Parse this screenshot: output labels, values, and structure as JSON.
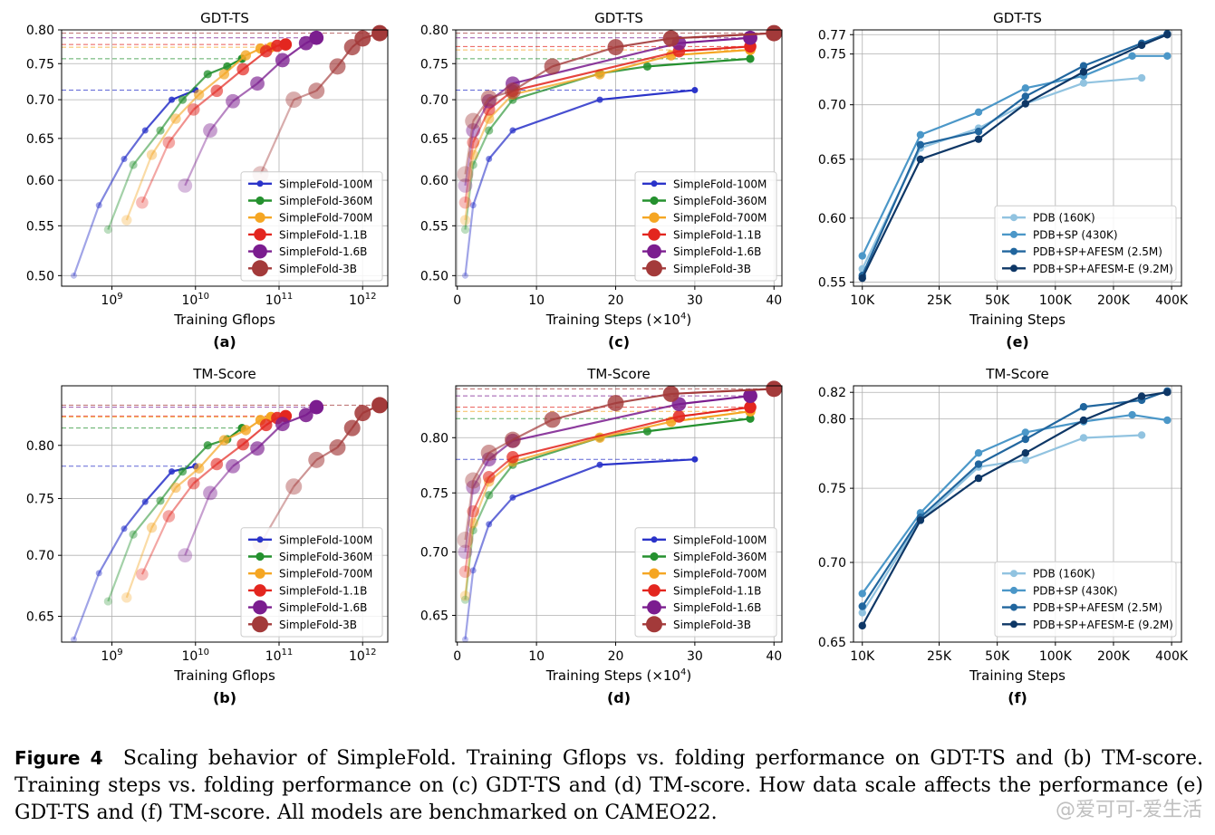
{
  "caption": {
    "label": "Figure 4",
    "text": "Scaling behavior of SimpleFold. Training Gflops vs. folding performance on GDT-TS and (b) TM-score. Training steps vs. folding performance on (c) GDT-TS and (d) TM-score. How data scale affects the performance (e) GDT-TS and (f) TM-score. All models are benchmarked on CAMEO22."
  },
  "watermark": "@爱可可-爱生活",
  "colors": {
    "SimpleFold-100M": "#2a33c9",
    "SimpleFold-360M": "#25912f",
    "SimpleFold-700M": "#f5a623",
    "SimpleFold-1.1B": "#e3261f",
    "SimpleFold-1.6B": "#7b1d8f",
    "SimpleFold-3B": "#a33a3a",
    "PDB (160K)": "#91c3e0",
    "PDB+SP (430K)": "#4b97c8",
    "PDB+SP+AFESM (2.5M)": "#21669e",
    "PDB+SP+AFESM-E (9.2M)": "#0e3766"
  },
  "chart_data": [
    {
      "id": "a",
      "panel_label": "(a)",
      "type": "line",
      "title": "GDT-TS",
      "xlabel": "Training Gflops",
      "ylabel": "",
      "xscale": "log",
      "xlim": [
        250000000,
        2000000000000
      ],
      "ylim": [
        0.49,
        0.8
      ],
      "yscale": "log",
      "xticks": [
        1000000000,
        10000000000,
        100000000000,
        1000000000000
      ],
      "xticklabels": [
        "10^9",
        "10^10",
        "10^11",
        "10^12"
      ],
      "yticks": [
        0.5,
        0.55,
        0.6,
        0.65,
        0.7,
        0.75,
        0.8
      ],
      "yticklabels": [
        "0.50",
        "0.55",
        "0.60",
        "0.65",
        "0.70",
        "0.75",
        "0.80"
      ],
      "grid": true,
      "legend": "bottom-right",
      "fade": true,
      "series": [
        {
          "name": "SimpleFold-100M",
          "x": [
            350000000,
            700000000,
            1400000000,
            2500000000,
            5200000000,
            10000000000
          ],
          "y": [
            0.5,
            0.572,
            0.625,
            0.66,
            0.7,
            0.713
          ]
        },
        {
          "name": "SimpleFold-360M",
          "x": [
            900000000,
            1800000000,
            3800000000,
            7000000000,
            14000000000,
            24000000000,
            36000000000
          ],
          "y": [
            0.546,
            0.618,
            0.66,
            0.7,
            0.735,
            0.746,
            0.757
          ]
        },
        {
          "name": "SimpleFold-700M",
          "x": [
            1500000000,
            3000000000,
            5800000000,
            11000000000,
            22000000000,
            40000000000,
            60000000000,
            80000000000
          ],
          "y": [
            0.556,
            0.63,
            0.675,
            0.707,
            0.735,
            0.762,
            0.772,
            0.774
          ]
        },
        {
          "name": "SimpleFold-1.1B",
          "x": [
            2300000000,
            4800000000,
            9500000000,
            18000000000,
            37000000000,
            70000000000,
            95000000000,
            120000000000
          ],
          "y": [
            0.575,
            0.645,
            0.687,
            0.712,
            0.742,
            0.768,
            0.776,
            0.778
          ]
        },
        {
          "name": "SimpleFold-1.6B",
          "x": [
            7500000000,
            15000000000,
            28000000000,
            55000000000,
            110000000000,
            210000000000,
            280000000000
          ],
          "y": [
            0.594,
            0.66,
            0.698,
            0.722,
            0.755,
            0.78,
            0.788
          ]
        },
        {
          "name": "SimpleFold-3B",
          "x": [
            60000000000,
            150000000000,
            280000000000,
            500000000000,
            750000000000,
            1000000000000,
            1600000000000
          ],
          "y": [
            0.607,
            0.7,
            0.712,
            0.746,
            0.774,
            0.787,
            0.795
          ]
        }
      ]
    },
    {
      "id": "b",
      "panel_label": "(b)",
      "type": "line",
      "title": "TM-Score",
      "xlabel": "Training Gflops",
      "ylabel": "",
      "xscale": "log",
      "xlim": [
        250000000,
        2000000000000
      ],
      "ylim": [
        0.63,
        0.86
      ],
      "yscale": "log",
      "xticks": [
        1000000000,
        10000000000,
        100000000000,
        1000000000000
      ],
      "xticklabels": [
        "10^9",
        "10^10",
        "10^11",
        "10^12"
      ],
      "yticks": [
        0.65,
        0.7,
        0.75,
        0.8
      ],
      "yticklabels": [
        "0.65",
        "0.70",
        "0.75",
        "0.80"
      ],
      "grid": true,
      "legend": "bottom-right",
      "fade": true,
      "series": [
        {
          "name": "SimpleFold-100M",
          "x": [
            350000000,
            700000000,
            1400000000,
            2500000000,
            5200000000,
            10000000000
          ],
          "y": [
            0.632,
            0.685,
            0.723,
            0.747,
            0.775,
            0.78
          ]
        },
        {
          "name": "SimpleFold-360M",
          "x": [
            900000000,
            1800000000,
            3800000000,
            7000000000,
            14000000000,
            24000000000,
            36000000000
          ],
          "y": [
            0.662,
            0.718,
            0.748,
            0.775,
            0.8,
            0.806,
            0.817
          ]
        },
        {
          "name": "SimpleFold-700M",
          "x": [
            1500000000,
            3000000000,
            5800000000,
            11000000000,
            22000000000,
            40000000000,
            60000000000,
            80000000000
          ],
          "y": [
            0.665,
            0.724,
            0.76,
            0.778,
            0.805,
            0.815,
            0.825,
            0.828
          ]
        },
        {
          "name": "SimpleFold-1.1B",
          "x": [
            2300000000,
            4800000000,
            9500000000,
            18000000000,
            37000000000,
            70000000000,
            95000000000,
            120000000000
          ],
          "y": [
            0.684,
            0.734,
            0.764,
            0.782,
            0.801,
            0.82,
            0.827,
            0.829
          ]
        },
        {
          "name": "SimpleFold-1.6B",
          "x": [
            7500000000,
            15000000000,
            28000000000,
            55000000000,
            110000000000,
            210000000000,
            280000000000
          ],
          "y": [
            0.7,
            0.755,
            0.78,
            0.797,
            0.821,
            0.83,
            0.838
          ]
        },
        {
          "name": "SimpleFold-3B",
          "x": [
            60000000000,
            150000000000,
            280000000000,
            500000000000,
            750000000000,
            1000000000000,
            1600000000000
          ],
          "y": [
            0.71,
            0.761,
            0.786,
            0.798,
            0.817,
            0.832,
            0.84
          ]
        }
      ]
    },
    {
      "id": "c",
      "panel_label": "(c)",
      "type": "line",
      "title": "GDT-TS",
      "xlabel": "Training Steps (×10^4)",
      "ylabel": "",
      "xscale": "linear",
      "xlim": [
        -0.2,
        41
      ],
      "ylim": [
        0.49,
        0.8
      ],
      "yscale": "log",
      "xticks": [
        0,
        10,
        20,
        30,
        40
      ],
      "xticklabels": [
        "0",
        "10",
        "20",
        "30",
        "40"
      ],
      "yticks": [
        0.5,
        0.55,
        0.6,
        0.65,
        0.7,
        0.75,
        0.8
      ],
      "yticklabels": [
        "0.50",
        "0.55",
        "0.60",
        "0.65",
        "0.70",
        "0.75",
        "0.80"
      ],
      "grid": true,
      "legend": "bottom-right",
      "fade": true,
      "series": [
        {
          "name": "SimpleFold-100M",
          "x": [
            1,
            2,
            4,
            7,
            18,
            30
          ],
          "y": [
            0.5,
            0.572,
            0.625,
            0.66,
            0.7,
            0.713
          ]
        },
        {
          "name": "SimpleFold-360M",
          "x": [
            1,
            2,
            4,
            7,
            18,
            24,
            37
          ],
          "y": [
            0.546,
            0.618,
            0.66,
            0.7,
            0.736,
            0.746,
            0.757
          ]
        },
        {
          "name": "SimpleFold-700M",
          "x": [
            1,
            2,
            4,
            7,
            18,
            27,
            37
          ],
          "y": [
            0.556,
            0.63,
            0.675,
            0.707,
            0.735,
            0.762,
            0.77
          ]
        },
        {
          "name": "SimpleFold-1.1B",
          "x": [
            1,
            2,
            4,
            7,
            28,
            37
          ],
          "y": [
            0.575,
            0.645,
            0.687,
            0.712,
            0.768,
            0.775
          ]
        },
        {
          "name": "SimpleFold-1.6B",
          "x": [
            1,
            2,
            4,
            7,
            28,
            37
          ],
          "y": [
            0.594,
            0.66,
            0.698,
            0.722,
            0.78,
            0.788
          ]
        },
        {
          "name": "SimpleFold-3B",
          "x": [
            1,
            2,
            4,
            7,
            12,
            20,
            27,
            40
          ],
          "y": [
            0.607,
            0.672,
            0.702,
            0.712,
            0.746,
            0.774,
            0.787,
            0.795
          ]
        }
      ]
    },
    {
      "id": "d",
      "panel_label": "(d)",
      "type": "line",
      "title": "TM-Score",
      "xlabel": "Training Steps (×10^4)",
      "ylabel": "",
      "xscale": "linear",
      "xlim": [
        -0.2,
        41
      ],
      "ylim": [
        0.63,
        0.85
      ],
      "yscale": "log",
      "xticks": [
        0,
        10,
        20,
        30,
        40
      ],
      "xticklabels": [
        "0",
        "10",
        "20",
        "30",
        "40"
      ],
      "yticks": [
        0.65,
        0.7,
        0.75,
        0.8
      ],
      "yticklabels": [
        "0.65",
        "0.70",
        "0.75",
        "0.80"
      ],
      "grid": true,
      "legend": "bottom-right",
      "fade": true,
      "series": [
        {
          "name": "SimpleFold-100M",
          "x": [
            1,
            2,
            4,
            7,
            18,
            30
          ],
          "y": [
            0.632,
            0.685,
            0.723,
            0.746,
            0.775,
            0.78
          ]
        },
        {
          "name": "SimpleFold-360M",
          "x": [
            1,
            2,
            4,
            7,
            18,
            24,
            37
          ],
          "y": [
            0.662,
            0.718,
            0.748,
            0.775,
            0.8,
            0.806,
            0.818
          ]
        },
        {
          "name": "SimpleFold-700M",
          "x": [
            1,
            2,
            4,
            7,
            18,
            27,
            37
          ],
          "y": [
            0.665,
            0.724,
            0.76,
            0.778,
            0.8,
            0.815,
            0.825
          ]
        },
        {
          "name": "SimpleFold-1.1B",
          "x": [
            1,
            2,
            4,
            7,
            28,
            37
          ],
          "y": [
            0.684,
            0.734,
            0.764,
            0.782,
            0.82,
            0.829
          ]
        },
        {
          "name": "SimpleFold-1.6B",
          "x": [
            1,
            2,
            4,
            7,
            28,
            37
          ],
          "y": [
            0.7,
            0.755,
            0.78,
            0.797,
            0.832,
            0.84
          ]
        },
        {
          "name": "SimpleFold-3B",
          "x": [
            1,
            2,
            4,
            7,
            12,
            20,
            27,
            40
          ],
          "y": [
            0.71,
            0.761,
            0.786,
            0.798,
            0.817,
            0.833,
            0.842,
            0.847
          ]
        }
      ]
    },
    {
      "id": "e",
      "panel_label": "(e)",
      "type": "line",
      "title": "GDT-TS",
      "xlabel": "Training Steps",
      "ylabel": "",
      "xscale": "log",
      "xlim": [
        9000,
        450000
      ],
      "ylim": [
        0.547,
        0.775
      ],
      "yscale": "log",
      "xticks": [
        10000,
        25000,
        50000,
        100000,
        200000,
        400000
      ],
      "xticklabels": [
        "10K",
        "25K",
        "50K",
        "100K",
        "200K",
        "400K"
      ],
      "yticks": [
        0.55,
        0.6,
        0.65,
        0.7,
        0.75,
        0.77
      ],
      "yticklabels": [
        "0.55",
        "0.60",
        "0.65",
        "0.70",
        "0.75",
        "0.77"
      ],
      "grid": true,
      "legend": "bottom-right",
      "fade": false,
      "series": [
        {
          "name": "PDB (160K)",
          "x": [
            10000,
            20000,
            40000,
            70000,
            140000,
            280000
          ],
          "y": [
            0.56,
            0.66,
            0.678,
            0.701,
            0.721,
            0.726
          ]
        },
        {
          "name": "PDB+SP (430K)",
          "x": [
            10000,
            20000,
            40000,
            70000,
            140000,
            250000,
            380000
          ],
          "y": [
            0.57,
            0.672,
            0.693,
            0.716,
            0.728,
            0.748,
            0.748
          ]
        },
        {
          "name": "PDB+SP+AFESM (2.5M)",
          "x": [
            10000,
            20000,
            40000,
            70000,
            140000,
            280000,
            380000
          ],
          "y": [
            0.555,
            0.663,
            0.675,
            0.708,
            0.738,
            0.761,
            0.771
          ]
        },
        {
          "name": "PDB+SP+AFESM-E (9.2M)",
          "x": [
            10000,
            20000,
            40000,
            70000,
            140000,
            280000,
            380000
          ],
          "y": [
            0.553,
            0.65,
            0.668,
            0.701,
            0.732,
            0.759,
            0.77
          ]
        }
      ]
    },
    {
      "id": "f",
      "panel_label": "(f)",
      "type": "line",
      "title": "TM-Score",
      "xlabel": "Training Steps",
      "ylabel": "",
      "xscale": "log",
      "xlim": [
        9000,
        450000
      ],
      "ylim": [
        0.65,
        0.825
      ],
      "yscale": "log",
      "xticks": [
        10000,
        25000,
        50000,
        100000,
        200000,
        400000
      ],
      "xticklabels": [
        "10K",
        "25K",
        "50K",
        "100K",
        "200K",
        "400K"
      ],
      "yticks": [
        0.65,
        0.7,
        0.75,
        0.8,
        0.82
      ],
      "yticklabels": [
        "0.65",
        "0.70",
        "0.75",
        "0.80",
        "0.82"
      ],
      "grid": true,
      "legend": "bottom-right",
      "fade": false,
      "series": [
        {
          "name": "PDB (160K)",
          "x": [
            10000,
            20000,
            40000,
            70000,
            140000,
            280000
          ],
          "y": [
            0.668,
            0.728,
            0.765,
            0.77,
            0.786,
            0.788
          ]
        },
        {
          "name": "PDB+SP (430K)",
          "x": [
            10000,
            20000,
            40000,
            70000,
            140000,
            250000,
            380000
          ],
          "y": [
            0.68,
            0.733,
            0.775,
            0.79,
            0.798,
            0.803,
            0.799
          ]
        },
        {
          "name": "PDB+SP+AFESM (2.5M)",
          "x": [
            10000,
            20000,
            40000,
            70000,
            140000,
            280000,
            380000
          ],
          "y": [
            0.672,
            0.73,
            0.767,
            0.785,
            0.809,
            0.814,
            0.821
          ]
        },
        {
          "name": "PDB+SP+AFESM-E (9.2M)",
          "x": [
            10000,
            20000,
            40000,
            70000,
            140000,
            280000,
            380000
          ],
          "y": [
            0.66,
            0.728,
            0.757,
            0.775,
            0.799,
            0.817,
            0.82
          ]
        }
      ]
    }
  ]
}
